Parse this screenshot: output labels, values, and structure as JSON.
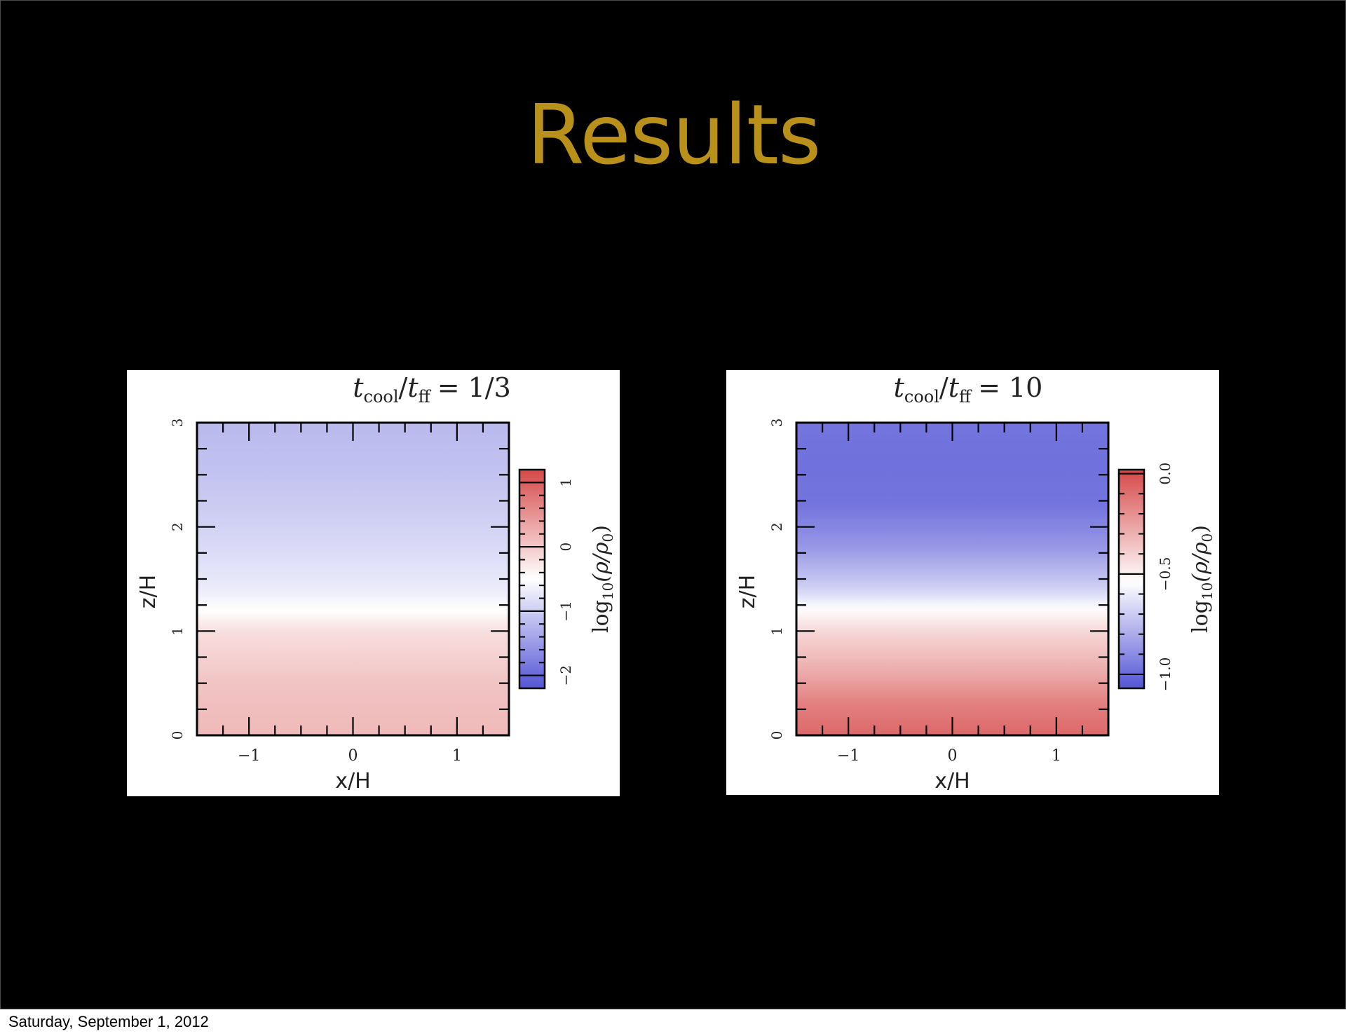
{
  "slide": {
    "title": "Results",
    "footer_date": "Saturday, September 1, 2012",
    "title_color": "#b8901a",
    "background": "#000000"
  },
  "chart_data": [
    {
      "type": "heatmap",
      "title": "t_cool/t_ff = 1/3",
      "title_parts": {
        "t1": "t",
        "s1": "cool",
        "slash": "/",
        "t2": "t",
        "s2": "ff",
        "eq": "= 1/3"
      },
      "xlabel": "x/H",
      "ylabel": "z/H",
      "xlim": [
        -1.5,
        1.5
      ],
      "ylim": [
        0,
        3
      ],
      "xticks": [
        -1,
        0,
        1
      ],
      "xtick_labels": [
        "−1",
        "0",
        "1"
      ],
      "yticks": [
        0,
        1,
        2,
        3
      ],
      "ytick_labels": [
        "0",
        "1",
        "2",
        "3"
      ],
      "colorbar": {
        "label": "log10(ρ/ρ0)",
        "label_parts": {
          "a": "log",
          "b": "10",
          "c": "(ρ/ρ",
          "d": "0",
          "e": ")"
        },
        "range": [
          -2.2,
          1.2
        ],
        "ticks": [
          -2,
          -1,
          0,
          1
        ],
        "tick_labels": [
          "−2",
          "−1",
          "0",
          "1"
        ],
        "center": -0.5,
        "colormap": "blue-white-red"
      },
      "profile": {
        "z": [
          0,
          0.5,
          1.0,
          1.2,
          1.4,
          2.0,
          2.5,
          3.0
        ],
        "value": [
          0.15,
          0.05,
          -0.2,
          -0.5,
          -0.7,
          -0.95,
          -1.1,
          -1.2
        ]
      }
    },
    {
      "type": "heatmap",
      "title": "t_cool/t_ff = 10",
      "title_parts": {
        "t1": "t",
        "s1": "cool",
        "slash": "/",
        "t2": "t",
        "s2": "ff",
        "eq": "= 10"
      },
      "xlabel": "x/H",
      "ylabel": "z/H",
      "xlim": [
        -1.5,
        1.5
      ],
      "ylim": [
        0,
        3
      ],
      "xticks": [
        -1,
        0,
        1
      ],
      "xtick_labels": [
        "−1",
        "0",
        "1"
      ],
      "yticks": [
        0,
        1,
        2,
        3
      ],
      "ytick_labels": [
        "0",
        "1",
        "2",
        "3"
      ],
      "colorbar": {
        "label": "log10(ρ/ρ0)",
        "label_parts": {
          "a": "log",
          "b": "10",
          "c": "(ρ/ρ",
          "d": "0",
          "e": ")"
        },
        "range": [
          -1.07,
          0.02
        ],
        "ticks": [
          -1.0,
          -0.5,
          0.0
        ],
        "tick_labels": [
          "−1.0",
          "−0.5",
          "0.0"
        ],
        "center": -0.54,
        "colormap": "blue-white-red"
      },
      "profile": {
        "z": [
          0,
          0.3,
          0.6,
          1.0,
          1.22,
          1.4,
          1.8,
          2.2,
          2.6,
          3.0
        ],
        "value": [
          -0.08,
          -0.15,
          -0.28,
          -0.42,
          -0.54,
          -0.68,
          -0.86,
          -0.97,
          -0.98,
          -0.97
        ]
      }
    }
  ]
}
